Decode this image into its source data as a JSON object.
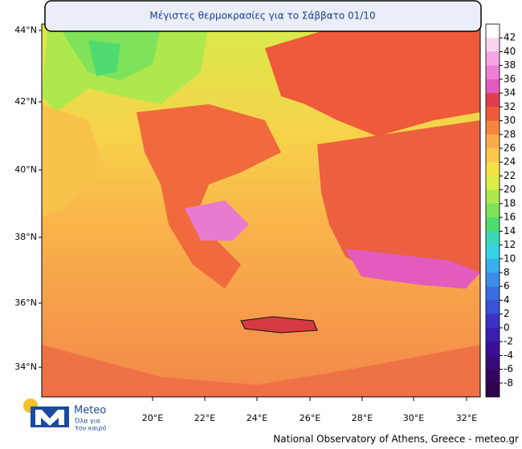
{
  "title": "Μέγιστες θερμοκρασίες για το Σάββατο 01/10",
  "lat_labels": [
    "44°N",
    "42°N",
    "40°N",
    "38°N",
    "36°N",
    "34°N"
  ],
  "lon_labels": [
    "20°E",
    "22°E",
    "24°E",
    "26°E",
    "28°E",
    "30°E",
    "32°E"
  ],
  "colorbar": {
    "ticks": [
      42,
      40,
      38,
      36,
      34,
      32,
      30,
      28,
      26,
      24,
      22,
      20,
      18,
      16,
      14,
      12,
      10,
      8,
      6,
      4,
      2,
      0,
      -2,
      -4,
      -6,
      -8
    ],
    "colors": [
      "#ffffff",
      "#fbd3f0",
      "#f6a6e4",
      "#ee7fd6",
      "#e25bbd",
      "#e23d4d",
      "#ee5a3a",
      "#f5873d",
      "#f8ad4a",
      "#f9c74c",
      "#f7e244",
      "#dbee47",
      "#aee84d",
      "#7ee25a",
      "#4fdb6f",
      "#3ad8b8",
      "#36d2e6",
      "#37b0ec",
      "#3a8ee8",
      "#3a6ee0",
      "#3b50d6",
      "#3b33c6",
      "#3a1eb0",
      "#3a0e96",
      "#380a7a",
      "#340662",
      "#2e044e"
    ]
  },
  "logo": {
    "name": "Meteo",
    "tagline_1": "Όλα για",
    "tagline_2": "τον καιρό"
  },
  "footer": "National Observatory of Athens, Greece - meteo.gr"
}
